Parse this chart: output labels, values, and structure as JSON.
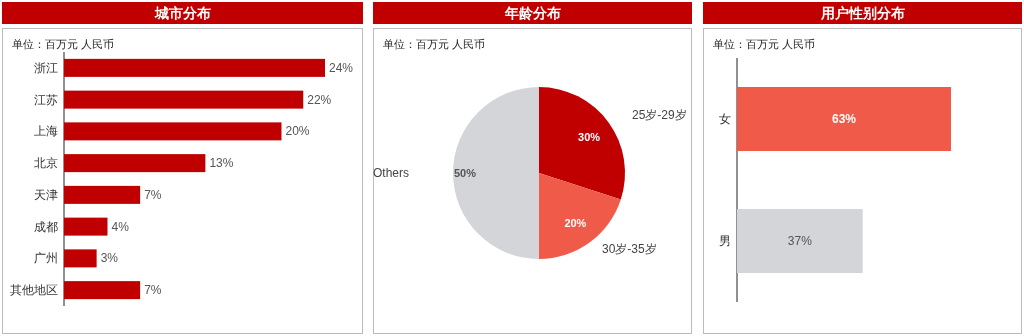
{
  "chart_data": [
    {
      "type": "bar",
      "orientation": "horizontal",
      "title": "城市分布",
      "annotations": [
        "单位：百万元 人民币"
      ],
      "categories": [
        "浙江",
        "江苏",
        "上海",
        "北京",
        "天津",
        "成都",
        "广州",
        "其他地区"
      ],
      "values": [
        24,
        22,
        20,
        13,
        7,
        4,
        3,
        7
      ],
      "value_labels": [
        "24%",
        "22%",
        "20%",
        "13%",
        "7%",
        "4%",
        "3%",
        "7%"
      ],
      "color": "#c00000"
    },
    {
      "type": "pie",
      "title": "年龄分布",
      "annotations": [
        "单位：百万元 人民币"
      ],
      "categories": [
        "25岁-29岁",
        "30岁-35岁",
        "Others"
      ],
      "values": [
        30,
        20,
        50
      ],
      "value_labels": [
        "30%",
        "20%",
        "50%"
      ],
      "colors": [
        "#c00000",
        "#f05a48",
        "#d4d5d8"
      ]
    },
    {
      "type": "bar",
      "orientation": "horizontal",
      "title": "用户性别分布",
      "annotations": [
        "单位：百万元 人民币"
      ],
      "categories": [
        "女",
        "男"
      ],
      "values": [
        63,
        37
      ],
      "value_labels": [
        "63%",
        "37%"
      ],
      "colors": [
        "#f05a48",
        "#d4d5d8"
      ]
    }
  ]
}
